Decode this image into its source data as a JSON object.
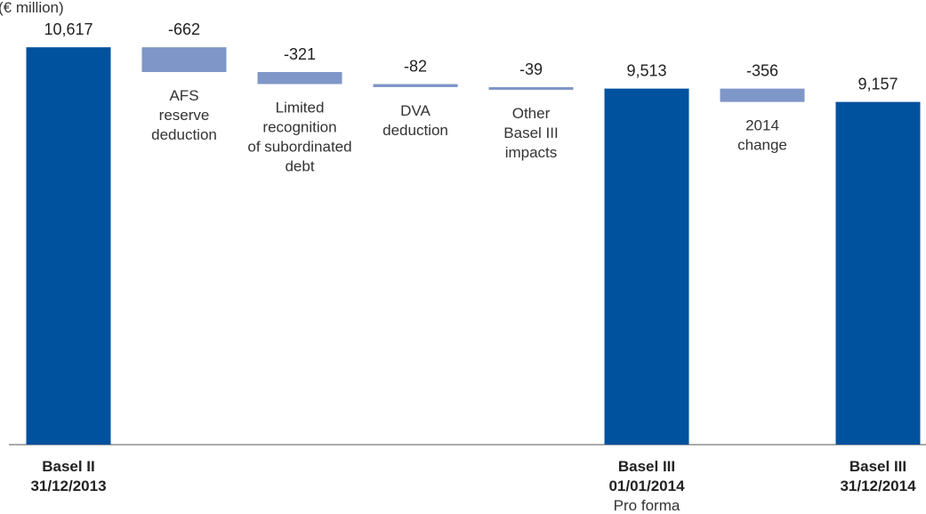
{
  "chart_data": {
    "type": "bar",
    "subtype": "waterfall",
    "unit_label": "(€ million)",
    "ylim": [
      0,
      11500
    ],
    "grid": false,
    "steps": [
      {
        "kind": "total",
        "value": 10617,
        "label": "10,617",
        "color": "#00519E",
        "category": [
          "Basel II",
          "31/12/2013"
        ],
        "category_sub": "",
        "description": []
      },
      {
        "kind": "delta",
        "value": -662,
        "label": "-662",
        "color": "#7F96C8",
        "category": [],
        "category_sub": "",
        "description": [
          "AFS",
          "reserve",
          "deduction"
        ]
      },
      {
        "kind": "delta",
        "value": -321,
        "label": "-321",
        "color": "#7F96C8",
        "category": [],
        "category_sub": "",
        "description": [
          "Limited",
          "recognition",
          "of subordinated",
          "debt"
        ]
      },
      {
        "kind": "delta",
        "value": -82,
        "label": "-82",
        "color": "#7F96C8",
        "category": [],
        "category_sub": "",
        "description": [
          "DVA",
          "deduction"
        ]
      },
      {
        "kind": "delta",
        "value": -39,
        "label": "-39",
        "color": "#7F96C8",
        "category": [],
        "category_sub": "",
        "description": [
          "Other",
          "Basel  III",
          "impacts"
        ]
      },
      {
        "kind": "total",
        "value": 9513,
        "label": "9,513",
        "color": "#00519E",
        "category": [
          "Basel III",
          "01/01/2014"
        ],
        "category_sub": "Pro forma",
        "description": []
      },
      {
        "kind": "delta",
        "value": -356,
        "label": "-356",
        "color": "#7F96C8",
        "category": [],
        "category_sub": "",
        "description": [
          "2014",
          "change"
        ]
      },
      {
        "kind": "total",
        "value": 9157,
        "label": "9,157",
        "color": "#00519E",
        "category": [
          "Basel III",
          "31/12/2014"
        ],
        "category_sub": "",
        "description": []
      }
    ]
  }
}
